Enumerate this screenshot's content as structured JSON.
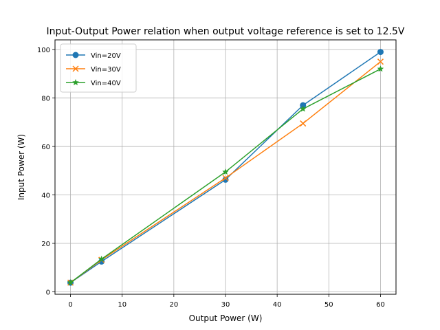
{
  "chart_data": {
    "type": "line",
    "title": "Input-Output Power relation when output voltage reference is set to 12.5V",
    "xlabel": "Output Power (W)",
    "ylabel": "Input Power (W)",
    "xlim": [
      -3,
      63
    ],
    "ylim": [
      -1,
      104
    ],
    "xticks": [
      0,
      10,
      20,
      30,
      40,
      50,
      60
    ],
    "yticks": [
      0,
      20,
      40,
      60,
      80,
      100
    ],
    "grid": true,
    "legend_position": "top-left",
    "series": [
      {
        "name": "Vin=20V",
        "color": "#1f77b4",
        "marker": "circle",
        "x": [
          0,
          6,
          30,
          45,
          60
        ],
        "y": [
          3.8,
          12.5,
          46.3,
          77.0,
          99.0
        ]
      },
      {
        "name": "Vin=30V",
        "color": "#ff7f0e",
        "marker": "x",
        "x": [
          0,
          6,
          30,
          45,
          60
        ],
        "y": [
          3.8,
          13.2,
          47.0,
          69.5,
          95.0
        ]
      },
      {
        "name": "Vin=40V",
        "color": "#2ca02c",
        "marker": "star",
        "x": [
          0,
          6,
          30,
          45,
          60
        ],
        "y": [
          3.8,
          13.5,
          49.5,
          75.5,
          92.0
        ]
      }
    ]
  }
}
